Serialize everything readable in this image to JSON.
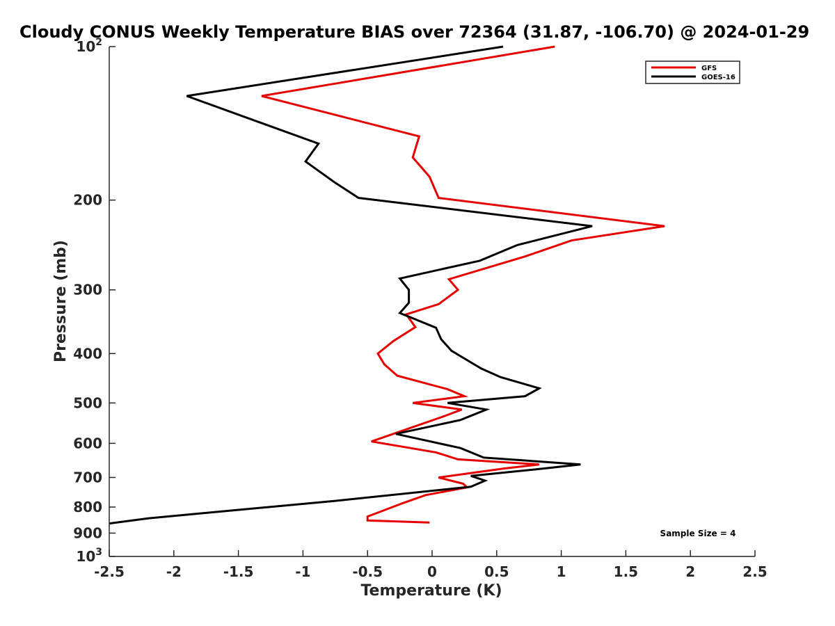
{
  "chart_data": {
    "type": "line",
    "title": "Cloudy CONUS Weekly Temperature BIAS over 72364 (31.87, -106.70) @ 2024-01-29",
    "xlabel": "Temperature (K)",
    "ylabel": "Pressure (mb)",
    "xlim": [
      -2.5,
      2.5
    ],
    "ylim": [
      100,
      1000
    ],
    "y_scale": "log",
    "y_reversed": true,
    "grid": false,
    "legend_position": "top-right",
    "x_ticks": [
      "-2.5",
      "-2",
      "-1.5",
      "-1",
      "-0.5",
      "0",
      "0.5",
      "1",
      "1.5",
      "2",
      "2.5"
    ],
    "x_tick_values": [
      -2.5,
      -2,
      -1.5,
      -1,
      -0.5,
      0,
      0.5,
      1,
      1.5,
      2,
      2.5
    ],
    "y_ticks": [
      {
        "value": 100,
        "base": "10",
        "exp": "2"
      },
      {
        "value": 200,
        "base": "200",
        "exp": ""
      },
      {
        "value": 300,
        "base": "300",
        "exp": ""
      },
      {
        "value": 400,
        "base": "400",
        "exp": ""
      },
      {
        "value": 500,
        "base": "500",
        "exp": ""
      },
      {
        "value": 600,
        "base": "600",
        "exp": ""
      },
      {
        "value": 700,
        "base": "700",
        "exp": ""
      },
      {
        "value": 800,
        "base": "800",
        "exp": ""
      },
      {
        "value": 900,
        "base": "900",
        "exp": ""
      },
      {
        "value": 1000,
        "base": "10",
        "exp": "3"
      }
    ],
    "series": [
      {
        "name": "GFS",
        "color": "#e60000",
        "points": [
          [
            0.95,
            100
          ],
          [
            -1.32,
            125
          ],
          [
            -0.1,
            150
          ],
          [
            -0.15,
            165
          ],
          [
            -0.02,
            180
          ],
          [
            0.05,
            198
          ],
          [
            1.8,
            225
          ],
          [
            1.08,
            240
          ],
          [
            0.72,
            258
          ],
          [
            0.13,
            286
          ],
          [
            0.2,
            300
          ],
          [
            0.05,
            320
          ],
          [
            -0.2,
            335
          ],
          [
            -0.13,
            355
          ],
          [
            -0.3,
            378
          ],
          [
            -0.42,
            400
          ],
          [
            -0.37,
            420
          ],
          [
            -0.27,
            442
          ],
          [
            0.12,
            470
          ],
          [
            0.25,
            485
          ],
          [
            -0.15,
            500
          ],
          [
            0.23,
            515
          ],
          [
            0.1,
            530
          ],
          [
            -0.47,
            595
          ],
          [
            0.03,
            625
          ],
          [
            0.2,
            645
          ],
          [
            0.83,
            660
          ],
          [
            0.56,
            672
          ],
          [
            0.05,
            700
          ],
          [
            0.24,
            720
          ],
          [
            0.27,
            732
          ],
          [
            -0.05,
            758
          ],
          [
            -0.22,
            785
          ],
          [
            -0.5,
            835
          ],
          [
            -0.5,
            850
          ],
          [
            -0.02,
            858
          ]
        ]
      },
      {
        "name": "GOES-16",
        "color": "#000000",
        "points": [
          [
            0.55,
            100
          ],
          [
            -1.9,
            125
          ],
          [
            -0.88,
            155
          ],
          [
            -0.98,
            168
          ],
          [
            -0.75,
            185
          ],
          [
            -0.57,
            198
          ],
          [
            1.24,
            225
          ],
          [
            0.66,
            245
          ],
          [
            0.37,
            263
          ],
          [
            -0.25,
            285
          ],
          [
            -0.18,
            300
          ],
          [
            -0.18,
            318
          ],
          [
            -0.25,
            333
          ],
          [
            0.03,
            356
          ],
          [
            0.07,
            375
          ],
          [
            0.15,
            395
          ],
          [
            0.38,
            428
          ],
          [
            0.53,
            445
          ],
          [
            0.83,
            468
          ],
          [
            0.72,
            485
          ],
          [
            0.12,
            500
          ],
          [
            0.42,
            515
          ],
          [
            0.22,
            540
          ],
          [
            -0.28,
            575
          ],
          [
            0.22,
            613
          ],
          [
            0.4,
            640
          ],
          [
            1.15,
            660
          ],
          [
            0.8,
            675
          ],
          [
            0.3,
            695
          ],
          [
            0.41,
            710
          ],
          [
            0.3,
            730
          ],
          [
            -0.75,
            778
          ],
          [
            -1.83,
            825
          ],
          [
            -2.2,
            842
          ],
          [
            -2.5,
            862
          ]
        ]
      }
    ],
    "annotations": [
      {
        "text": "Sample Size = 4"
      }
    ]
  }
}
